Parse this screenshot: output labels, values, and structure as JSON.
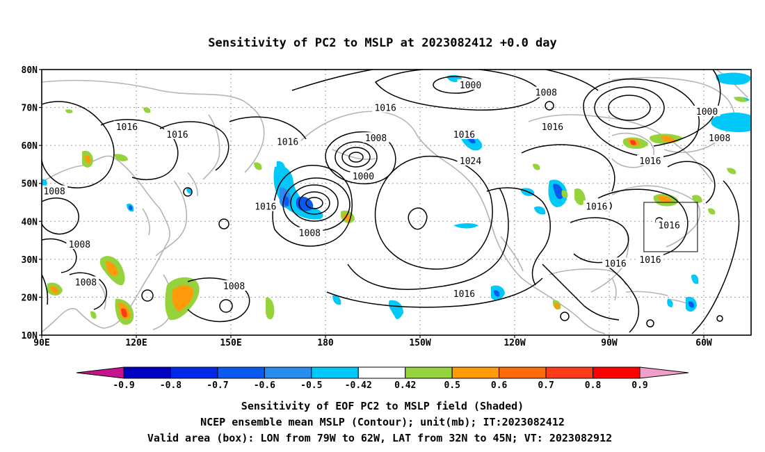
{
  "title": "Sensitivity of PC2 to MSLP at 2023082412 +0.0 day",
  "map": {
    "lat_labels": [
      "80N",
      "70N",
      "60N",
      "50N",
      "40N",
      "30N",
      "20N",
      "10N"
    ],
    "lon_labels": [
      "90E",
      "120E",
      "150E",
      "180",
      "150W",
      "120W",
      "90W",
      "60W"
    ],
    "grid_lats": [
      80,
      70,
      60,
      50,
      40,
      30,
      20,
      10
    ],
    "grid_lons": [
      90,
      120,
      150,
      180,
      210,
      240,
      270,
      300
    ],
    "lon_range": [
      90,
      315
    ],
    "lat_range": [
      10,
      80
    ],
    "contour_labels": [
      {
        "text": "1016",
        "lon": 117,
        "lat": 65
      },
      {
        "text": "1016",
        "lon": 133,
        "lat": 63
      },
      {
        "text": "1016",
        "lon": 199,
        "lat": 70
      },
      {
        "text": "1008",
        "lon": 196,
        "lat": 62
      },
      {
        "text": "1016",
        "lon": 168,
        "lat": 61
      },
      {
        "text": "1016",
        "lon": 224,
        "lat": 63
      },
      {
        "text": "1016",
        "lon": 252,
        "lat": 65
      },
      {
        "text": "1000",
        "lon": 226,
        "lat": 76
      },
      {
        "text": "1008",
        "lon": 250,
        "lat": 74
      },
      {
        "text": "1000",
        "lon": 301,
        "lat": 69
      },
      {
        "text": "1008",
        "lon": 305,
        "lat": 62
      },
      {
        "text": "1024",
        "lon": 226,
        "lat": 56
      },
      {
        "text": "1000",
        "lon": 192,
        "lat": 52
      },
      {
        "text": "1016",
        "lon": 283,
        "lat": 56
      },
      {
        "text": "1008",
        "lon": 94,
        "lat": 48
      },
      {
        "text": "1016",
        "lon": 161,
        "lat": 44
      },
      {
        "text": "1008",
        "lon": 175,
        "lat": 37
      },
      {
        "text": "1016",
        "lon": 266,
        "lat": 44
      },
      {
        "text": "1008",
        "lon": 102,
        "lat": 34
      },
      {
        "text": "1016",
        "lon": 289,
        "lat": 39
      },
      {
        "text": "1016",
        "lon": 272,
        "lat": 29
      },
      {
        "text": "1016",
        "lon": 283,
        "lat": 30
      },
      {
        "text": "1008",
        "lon": 104,
        "lat": 24
      },
      {
        "text": "1008",
        "lon": 151,
        "lat": 23
      },
      {
        "text": "1016",
        "lon": 224,
        "lat": 21
      }
    ],
    "valid_box": {
      "lon_min": 281,
      "lon_max": 298,
      "lat_min": 32,
      "lat_max": 45
    }
  },
  "colorbar": {
    "tick_labels": [
      "-0.9",
      "-0.8",
      "-0.7",
      "-0.6",
      "-0.5",
      "-0.42",
      "0.42",
      "0.5",
      "0.6",
      "0.7",
      "0.8",
      "0.9"
    ],
    "colors": [
      "#0000c0",
      "#0028e6",
      "#0a5af0",
      "#2a8cf0",
      "#00c8f8",
      "#ffffff",
      "#96d23c",
      "#ff9a0a",
      "#ff6a0a",
      "#ff3c1a",
      "#ff0000"
    ],
    "low_arrow_color": "#c8148c",
    "high_arrow_color": "#f0a0c8"
  },
  "shading_colors": {
    "lightblue": "#00c8f8",
    "blue": "#2a8cf0",
    "darkblue": "#0a5af0",
    "green": "#96d23c",
    "orange": "#ff9a0a",
    "red": "#ff3c1a"
  },
  "footer": {
    "line1": "Sensitivity of EOF PC2 to MSLP field (Shaded)",
    "line2": "NCEP ensemble mean MSLP (Contour); unit(mb); IT:2023082412",
    "line3": "Valid area (box): LON from 79W to 62W, LAT from 32N to 45N; VT: 2023082912"
  }
}
